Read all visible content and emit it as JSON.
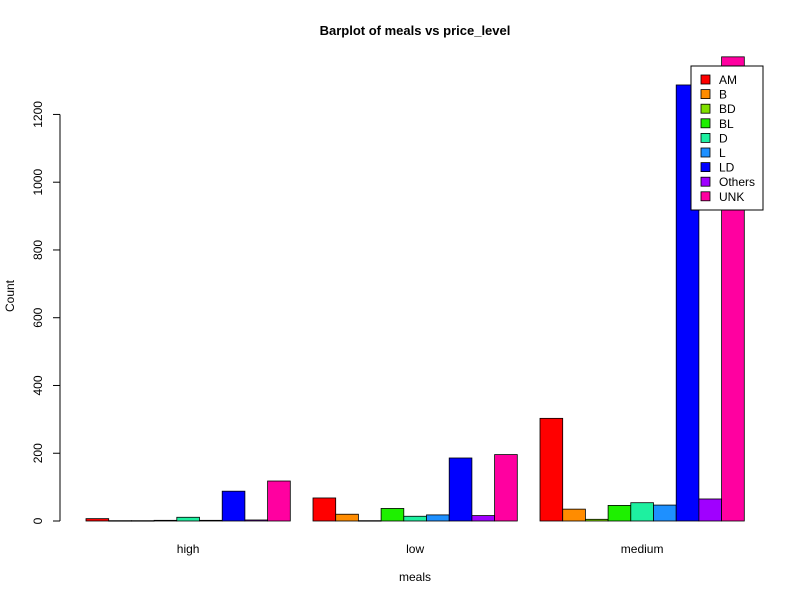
{
  "chart_data": {
    "type": "bar",
    "title": "Barplot of meals vs price_level",
    "xlabel": "meals",
    "ylabel": "Count",
    "categories": [
      "high",
      "low",
      "medium"
    ],
    "ylim": [
      0,
      1375
    ],
    "yticks": [
      0,
      200,
      400,
      600,
      800,
      1000,
      1200
    ],
    "legend_position": "top-right",
    "series": [
      {
        "name": "AM",
        "color": "#FF0000",
        "values": [
          7,
          68,
          303
        ]
      },
      {
        "name": "B",
        "color": "#FF8C00",
        "values": [
          1,
          20,
          35
        ]
      },
      {
        "name": "BD",
        "color": "#80E000",
        "values": [
          1,
          1,
          5
        ]
      },
      {
        "name": "BL",
        "color": "#1EF000",
        "values": [
          2,
          37,
          46
        ]
      },
      {
        "name": "D",
        "color": "#1EF0A0",
        "values": [
          11,
          14,
          54
        ]
      },
      {
        "name": "L",
        "color": "#1E90FF",
        "values": [
          2,
          18,
          47
        ]
      },
      {
        "name": "LD",
        "color": "#0000FF",
        "values": [
          88,
          186,
          1287
        ]
      },
      {
        "name": "Others",
        "color": "#A000FF",
        "values": [
          3,
          16,
          65
        ]
      },
      {
        "name": "UNK",
        "color": "#FF00A0",
        "values": [
          118,
          196,
          1370
        ]
      }
    ]
  }
}
